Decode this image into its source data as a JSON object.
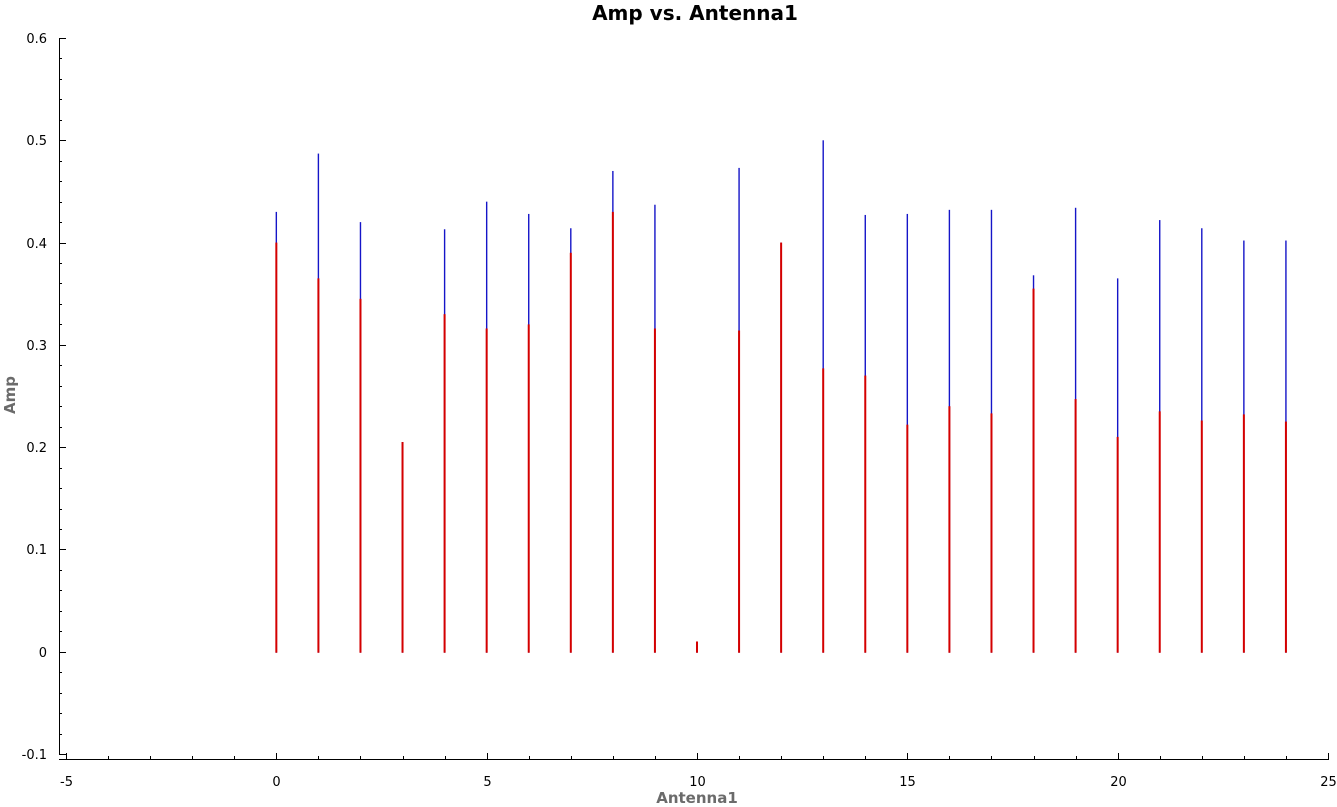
{
  "colors": {
    "background": "#ffffff",
    "axis": "#000000",
    "axis_title": "#6b6b6b",
    "series_blue": "#1515c8",
    "series_red": "#d40000"
  },
  "chart_data": {
    "type": "scatter",
    "title": "Amp vs. Antenna1",
    "xlabel": "Antenna1",
    "ylabel": "Amp",
    "xlim": [
      -5,
      25
    ],
    "ylim": [
      -0.1,
      0.6
    ],
    "x_ticks": [
      -5,
      0,
      5,
      10,
      15,
      20,
      25
    ],
    "x_tick_labels": [
      "-5",
      "0",
      "5",
      "10",
      "15",
      "20",
      "25"
    ],
    "y_ticks": [
      -0.1,
      0,
      0.1,
      0.2,
      0.3,
      0.4,
      0.5,
      0.6
    ],
    "y_tick_labels": [
      "-0.1",
      "0",
      "0.1",
      "0.2",
      "0.3",
      "0.4",
      "0.5",
      "0.6"
    ],
    "grid": false,
    "legend": "none",
    "series": [
      {
        "color": "#1515c8",
        "x": [
          0,
          1,
          2,
          3,
          4,
          5,
          6,
          7,
          8,
          9,
          10,
          11,
          12,
          13,
          14,
          15,
          16,
          17,
          18,
          19,
          20,
          21,
          22,
          23,
          24
        ],
        "y_min": [
          0,
          0,
          0,
          0,
          0,
          0,
          0,
          0,
          0,
          0,
          0,
          0,
          0,
          0,
          0,
          0,
          0,
          0,
          0,
          0,
          0,
          0,
          0,
          0,
          0
        ],
        "y_max": [
          0.43,
          0.487,
          0.42,
          0.205,
          0.413,
          0.44,
          0.428,
          0.414,
          0.47,
          0.437,
          0.01,
          0.473,
          0.4,
          0.5,
          0.427,
          0.428,
          0.432,
          0.432,
          0.368,
          0.434,
          0.365,
          0.422,
          0.414,
          0.402,
          0.402
        ]
      },
      {
        "color": "#d40000",
        "x": [
          0,
          1,
          2,
          3,
          4,
          5,
          6,
          7,
          8,
          9,
          10,
          11,
          12,
          13,
          14,
          15,
          16,
          17,
          18,
          19,
          20,
          21,
          22,
          23,
          24
        ],
        "y_min": [
          0,
          0,
          0,
          0,
          0,
          0,
          0,
          0,
          0,
          0,
          0,
          0,
          0,
          0,
          0,
          0,
          0,
          0,
          0,
          0,
          0,
          0,
          0,
          0,
          0
        ],
        "y_max": [
          0.4,
          0.365,
          0.345,
          0.205,
          0.33,
          0.316,
          0.32,
          0.39,
          0.43,
          0.316,
          0.01,
          0.314,
          0.4,
          0.277,
          0.27,
          0.222,
          0.24,
          0.233,
          0.355,
          0.247,
          0.21,
          0.235,
          0.226,
          0.232,
          0.225
        ]
      }
    ]
  }
}
